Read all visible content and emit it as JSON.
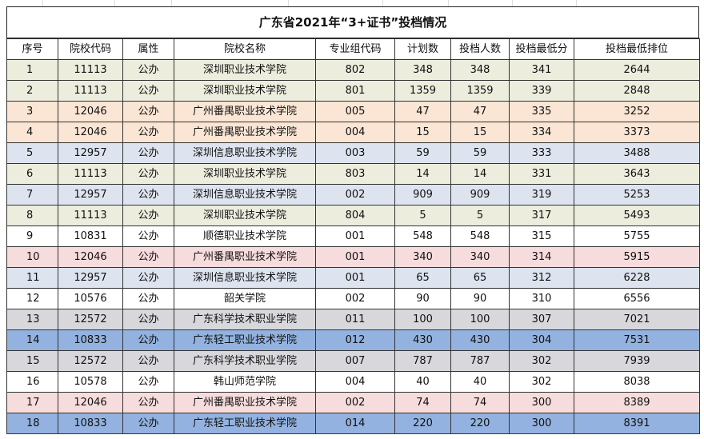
{
  "title": "广东省2021年“3+证书”投档情况",
  "headers": [
    "序号",
    "院校代码",
    "属性",
    "院校名称",
    "专业组代码",
    "计划数",
    "投档人数",
    "投档最低分",
    "投档最低排位"
  ],
  "rows": [
    {
      "cells": [
        "1",
        "11113",
        "公办",
        "深圳职业技术学院",
        "802",
        "348",
        "348",
        "341",
        "2644"
      ],
      "bg": "#ededde"
    },
    {
      "cells": [
        "2",
        "11113",
        "公办",
        "深圳职业技术学院",
        "801",
        "1359",
        "1359",
        "339",
        "2848"
      ],
      "bg": "#ededde"
    },
    {
      "cells": [
        "3",
        "12046",
        "公办",
        "广州番禺职业技术学院",
        "005",
        "47",
        "47",
        "335",
        "3252"
      ],
      "bg": "#fbe6d5"
    },
    {
      "cells": [
        "4",
        "12046",
        "公办",
        "广州番禺职业技术学院",
        "004",
        "15",
        "15",
        "334",
        "3373"
      ],
      "bg": "#fbe6d5"
    },
    {
      "cells": [
        "5",
        "12957",
        "公办",
        "深圳信息职业技术学院",
        "003",
        "59",
        "59",
        "333",
        "3488"
      ],
      "bg": "#dde4ef"
    },
    {
      "cells": [
        "6",
        "11113",
        "公办",
        "深圳职业技术学院",
        "803",
        "14",
        "14",
        "331",
        "3643"
      ],
      "bg": "#ededde"
    },
    {
      "cells": [
        "7",
        "12957",
        "公办",
        "深圳信息职业技术学院",
        "002",
        "909",
        "909",
        "319",
        "5253"
      ],
      "bg": "#dde4ef"
    },
    {
      "cells": [
        "8",
        "11113",
        "公办",
        "深圳职业技术学院",
        "804",
        "5",
        "5",
        "317",
        "5493"
      ],
      "bg": "#ededde"
    },
    {
      "cells": [
        "9",
        "10831",
        "公办",
        "顺德职业技术学院",
        "001",
        "548",
        "548",
        "315",
        "5755"
      ],
      "bg": "#ffffff"
    },
    {
      "cells": [
        "10",
        "12046",
        "公办",
        "广州番禺职业技术学院",
        "001",
        "340",
        "340",
        "314",
        "5915"
      ],
      "bg": "#f6dcdc"
    },
    {
      "cells": [
        "11",
        "12957",
        "公办",
        "深圳信息职业技术学院",
        "001",
        "65",
        "65",
        "312",
        "6228"
      ],
      "bg": "#dde4ef"
    },
    {
      "cells": [
        "12",
        "10576",
        "公办",
        "韶关学院",
        "002",
        "90",
        "90",
        "310",
        "6556"
      ],
      "bg": "#ffffff"
    },
    {
      "cells": [
        "13",
        "12572",
        "公办",
        "广东科学技术职业学院",
        "011",
        "100",
        "100",
        "307",
        "7021"
      ],
      "bg": "#d8d8dc"
    },
    {
      "cells": [
        "14",
        "10833",
        "公办",
        "广东轻工职业技术学院",
        "012",
        "430",
        "430",
        "304",
        "7531"
      ],
      "bg": "#93b2df"
    },
    {
      "cells": [
        "15",
        "12572",
        "公办",
        "广东科学技术职业学院",
        "007",
        "787",
        "787",
        "302",
        "7939"
      ],
      "bg": "#d8d8dc"
    },
    {
      "cells": [
        "16",
        "10578",
        "公办",
        "韩山师范学院",
        "004",
        "40",
        "40",
        "302",
        "8038"
      ],
      "bg": "#ffffff"
    },
    {
      "cells": [
        "17",
        "12046",
        "公办",
        "广州番禺职业技术学院",
        "002",
        "74",
        "74",
        "300",
        "8389"
      ],
      "bg": "#f6dcdc"
    },
    {
      "cells": [
        "18",
        "10833",
        "公办",
        "广东轻工职业技术学院",
        "014",
        "220",
        "220",
        "300",
        "8391"
      ],
      "bg": "#93b2df"
    }
  ]
}
